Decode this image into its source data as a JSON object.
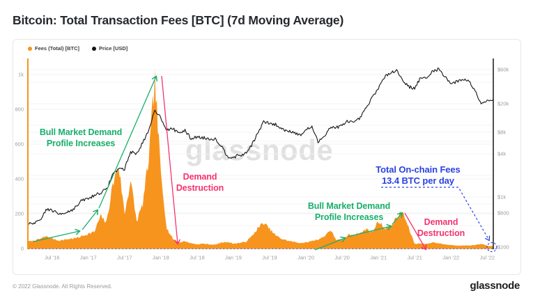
{
  "page": {
    "title": "Bitcoin: Total Transaction Fees [BTC] (7d Moving Average)"
  },
  "card": {
    "watermark": "glassnode",
    "legend": [
      {
        "label": "Fees (Total) [BTC]",
        "color": "#F7941E"
      },
      {
        "label": "Price [USD]",
        "color": "#141414"
      }
    ]
  },
  "footer": {
    "copyright": "© 2022 Glassnode. All Rights Reserved.",
    "brand": "glassnode"
  },
  "chart_data": {
    "type": "area",
    "title": "Bitcoin: Total Transaction Fees [BTC] (7d Moving Average)",
    "x_start_month": "2016-03",
    "x_end_month": "2022-08",
    "x_ticks": [
      {
        "label": "Jul '16",
        "m": 4
      },
      {
        "label": "Jan '17",
        "m": 10
      },
      {
        "label": "Jul '17",
        "m": 16
      },
      {
        "label": "Jan '18",
        "m": 22
      },
      {
        "label": "Jul '18",
        "m": 28
      },
      {
        "label": "Jan '19",
        "m": 34
      },
      {
        "label": "Jul '19",
        "m": 40
      },
      {
        "label": "Jan '20",
        "m": 46
      },
      {
        "label": "Jul '20",
        "m": 52
      },
      {
        "label": "Jan '21",
        "m": 58
      },
      {
        "label": "Jul '21",
        "m": 64
      },
      {
        "label": "Jan '22",
        "m": 70
      },
      {
        "label": "Jul '22",
        "m": 76
      }
    ],
    "left_axis": {
      "title": "Fees (Total) [BTC]",
      "scale": "linear",
      "range": [
        0,
        1050
      ],
      "ticks": [
        {
          "label": "0",
          "value": 0
        },
        {
          "label": "200",
          "value": 200
        },
        {
          "label": "400",
          "value": 400
        },
        {
          "label": "600",
          "value": 600
        },
        {
          "label": "800",
          "value": 800
        },
        {
          "label": "1k",
          "value": 1000
        }
      ]
    },
    "right_axis": {
      "title": "Price [USD]",
      "scale": "log",
      "ticks": [
        {
          "label": "$200",
          "value": 200
        },
        {
          "label": "$600",
          "value": 600
        },
        {
          "label": "$1k",
          "value": 1000
        },
        {
          "label": "$4k",
          "value": 4000
        },
        {
          "label": "$8k",
          "value": 8000
        },
        {
          "label": "$20k",
          "value": 20000
        },
        {
          "label": "$60k",
          "value": 60000
        }
      ]
    },
    "series": [
      {
        "name": "Fees (Total) [BTC]",
        "type": "area",
        "color": "#F7941E",
        "unit": "BTC per day",
        "monthly_values": [
          40,
          45,
          55,
          70,
          58,
          46,
          50,
          56,
          60,
          72,
          85,
          95,
          185,
          150,
          360,
          480,
          200,
          390,
          155,
          255,
          515,
          965,
          430,
          115,
          55,
          35,
          42,
          30,
          24,
          28,
          24,
          22,
          34,
          38,
          28,
          32,
          38,
          68,
          115,
          148,
          112,
          75,
          55,
          45,
          38,
          32,
          34,
          44,
          52,
          68,
          108,
          52,
          48,
          78,
          82,
          88,
          112,
          95,
          158,
          118,
          128,
          175,
          210,
          118,
          26,
          30,
          26,
          36,
          30,
          24,
          20,
          18,
          17,
          18,
          20,
          26,
          16,
          13.4
        ]
      },
      {
        "name": "Price [USD]",
        "type": "line",
        "color": "#141414",
        "unit": "USD",
        "monthly_values": [
          415,
          440,
          455,
          670,
          655,
          580,
          605,
          640,
          730,
          905,
          950,
          1060,
          1150,
          1270,
          2050,
          2500,
          2450,
          4300,
          4000,
          5800,
          8200,
          16500,
          12800,
          8600,
          8900,
          7900,
          8400,
          6500,
          6900,
          6700,
          6500,
          6450,
          5200,
          3700,
          3600,
          3800,
          4000,
          5300,
          7600,
          11200,
          10600,
          10200,
          8900,
          8400,
          8100,
          7200,
          8600,
          9600,
          5800,
          7100,
          9300,
          9350,
          9900,
          11600,
          10700,
          12800,
          17500,
          24500,
          33500,
          46000,
          55500,
          58500,
          43000,
          34500,
          33000,
          46500,
          44500,
          58000,
          60500,
          48000,
          38500,
          40500,
          44500,
          41000,
          30500,
          20500,
          22000,
          23000
        ]
      }
    ],
    "annotations": {
      "bull_left": {
        "line1": "Bull Market Demand",
        "line2": "Profile Increases",
        "color": "#17AF6B"
      },
      "destroy_left": {
        "line1": "Demand",
        "line2": "Destruction",
        "color": "#F5336E"
      },
      "bull_right": {
        "line1": "Bull Market Demand",
        "line2": "Profile Increases",
        "color": "#17AF6B"
      },
      "destroy_right": {
        "line1": "Demand",
        "line2": "Destruction",
        "color": "#F5336E"
      },
      "fees_callout": {
        "line1": "Total On-chain Fees",
        "line2": "13.4 BTC per day",
        "value_btc_per_day": 13.4,
        "color": "#2742E2"
      }
    }
  }
}
